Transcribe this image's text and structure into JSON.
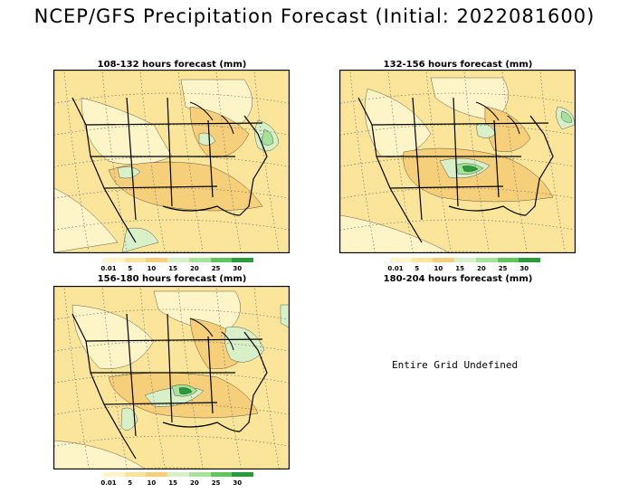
{
  "title": "NCEP/GFS Precipitation Forecast (Initial: 2022081600)",
  "legend": {
    "labels": [
      "0.01",
      "5",
      "10",
      "15",
      "20",
      "25",
      "30"
    ],
    "colors": [
      "#fdf5c8",
      "#fbe59a",
      "#f5cf7a",
      "#d8f0c8",
      "#a6e39a",
      "#5fc65c",
      "#2a9a3a"
    ]
  },
  "panels": [
    {
      "id": "p1",
      "title": "108-132 hours forecast (mm)",
      "defined": true
    },
    {
      "id": "p2",
      "title": "132-156 hours forecast (mm)",
      "defined": true
    },
    {
      "id": "p3",
      "title": "156-180 hours forecast (mm)",
      "defined": true
    },
    {
      "id": "p4",
      "title": "180-204 hours forecast (mm)",
      "defined": false,
      "message": "Entire Grid Undefined"
    }
  ]
}
